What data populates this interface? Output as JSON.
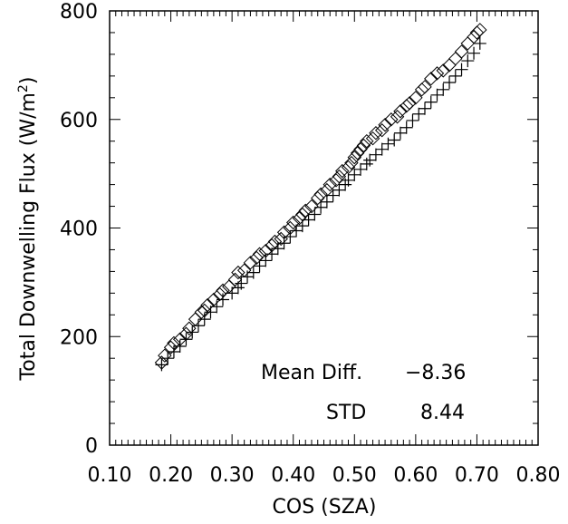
{
  "chart_data": {
    "type": "scatter",
    "xlabel": "COS (SZA)",
    "ylabel_prefix": "Total Downwelling Flux (W/m",
    "ylabel_sup": "2",
    "ylabel_suffix": ")",
    "xlim": [
      0.1,
      0.8
    ],
    "ylim": [
      0,
      800
    ],
    "xticks": [
      "0.10",
      "0.20",
      "0.30",
      "0.40",
      "0.50",
      "0.60",
      "0.70",
      "0.80"
    ],
    "yticks": [
      "0",
      "200",
      "400",
      "600",
      "800"
    ],
    "grid": false,
    "annotations": {
      "mean_label": "Mean Diff.",
      "mean_value": "−8.36",
      "std_label": "STD",
      "std_value": "8.44"
    },
    "series": [
      {
        "marker": "diamond",
        "x": [
          0.185,
          0.19,
          0.2,
          0.205,
          0.215,
          0.225,
          0.23,
          0.24,
          0.25,
          0.255,
          0.26,
          0.27,
          0.28,
          0.285,
          0.295,
          0.305,
          0.31,
          0.32,
          0.33,
          0.34,
          0.345,
          0.355,
          0.365,
          0.37,
          0.38,
          0.385,
          0.395,
          0.4,
          0.41,
          0.415,
          0.42,
          0.43,
          0.44,
          0.445,
          0.455,
          0.46,
          0.47,
          0.475,
          0.48,
          0.49,
          0.495,
          0.5,
          0.505,
          0.51,
          0.515,
          0.52,
          0.53,
          0.535,
          0.545,
          0.55,
          0.56,
          0.57,
          0.575,
          0.585,
          0.59,
          0.6,
          0.61,
          0.615,
          0.625,
          0.635,
          0.645,
          0.655,
          0.665,
          0.675,
          0.685,
          0.695,
          0.7,
          0.705
        ],
        "y": [
          152,
          165,
          180,
          188,
          195,
          205,
          215,
          232,
          245,
          248,
          258,
          268,
          278,
          285,
          292,
          305,
          318,
          322,
          336,
          345,
          352,
          358,
          368,
          375,
          380,
          392,
          400,
          410,
          418,
          425,
          432,
          440,
          455,
          462,
          470,
          480,
          488,
          495,
          505,
          512,
          520,
          530,
          538,
          545,
          552,
          560,
          565,
          575,
          580,
          590,
          600,
          605,
          615,
          625,
          630,
          640,
          655,
          660,
          675,
          685,
          690,
          700,
          712,
          725,
          740,
          752,
          760,
          765
        ]
      },
      {
        "marker": "plus",
        "x": [
          0.185,
          0.195,
          0.205,
          0.215,
          0.225,
          0.235,
          0.245,
          0.255,
          0.265,
          0.275,
          0.285,
          0.3,
          0.31,
          0.315,
          0.325,
          0.335,
          0.345,
          0.355,
          0.365,
          0.375,
          0.385,
          0.395,
          0.405,
          0.415,
          0.425,
          0.435,
          0.445,
          0.455,
          0.465,
          0.475,
          0.485,
          0.49,
          0.5,
          0.51,
          0.52,
          0.525,
          0.535,
          0.545,
          0.555,
          0.565,
          0.575,
          0.585,
          0.595,
          0.605,
          0.615,
          0.625,
          0.635,
          0.645,
          0.655,
          0.665,
          0.675,
          0.685,
          0.695,
          0.705
        ],
        "y": [
          148,
          160,
          172,
          182,
          195,
          208,
          220,
          232,
          245,
          255,
          268,
          280,
          290,
          298,
          310,
          318,
          330,
          340,
          352,
          362,
          372,
          384,
          395,
          404,
          415,
          425,
          438,
          448,
          460,
          470,
          480,
          488,
          498,
          508,
          518,
          525,
          535,
          545,
          555,
          562,
          575,
          585,
          598,
          610,
          620,
          632,
          645,
          655,
          668,
          680,
          692,
          708,
          722,
          740
        ]
      }
    ]
  }
}
